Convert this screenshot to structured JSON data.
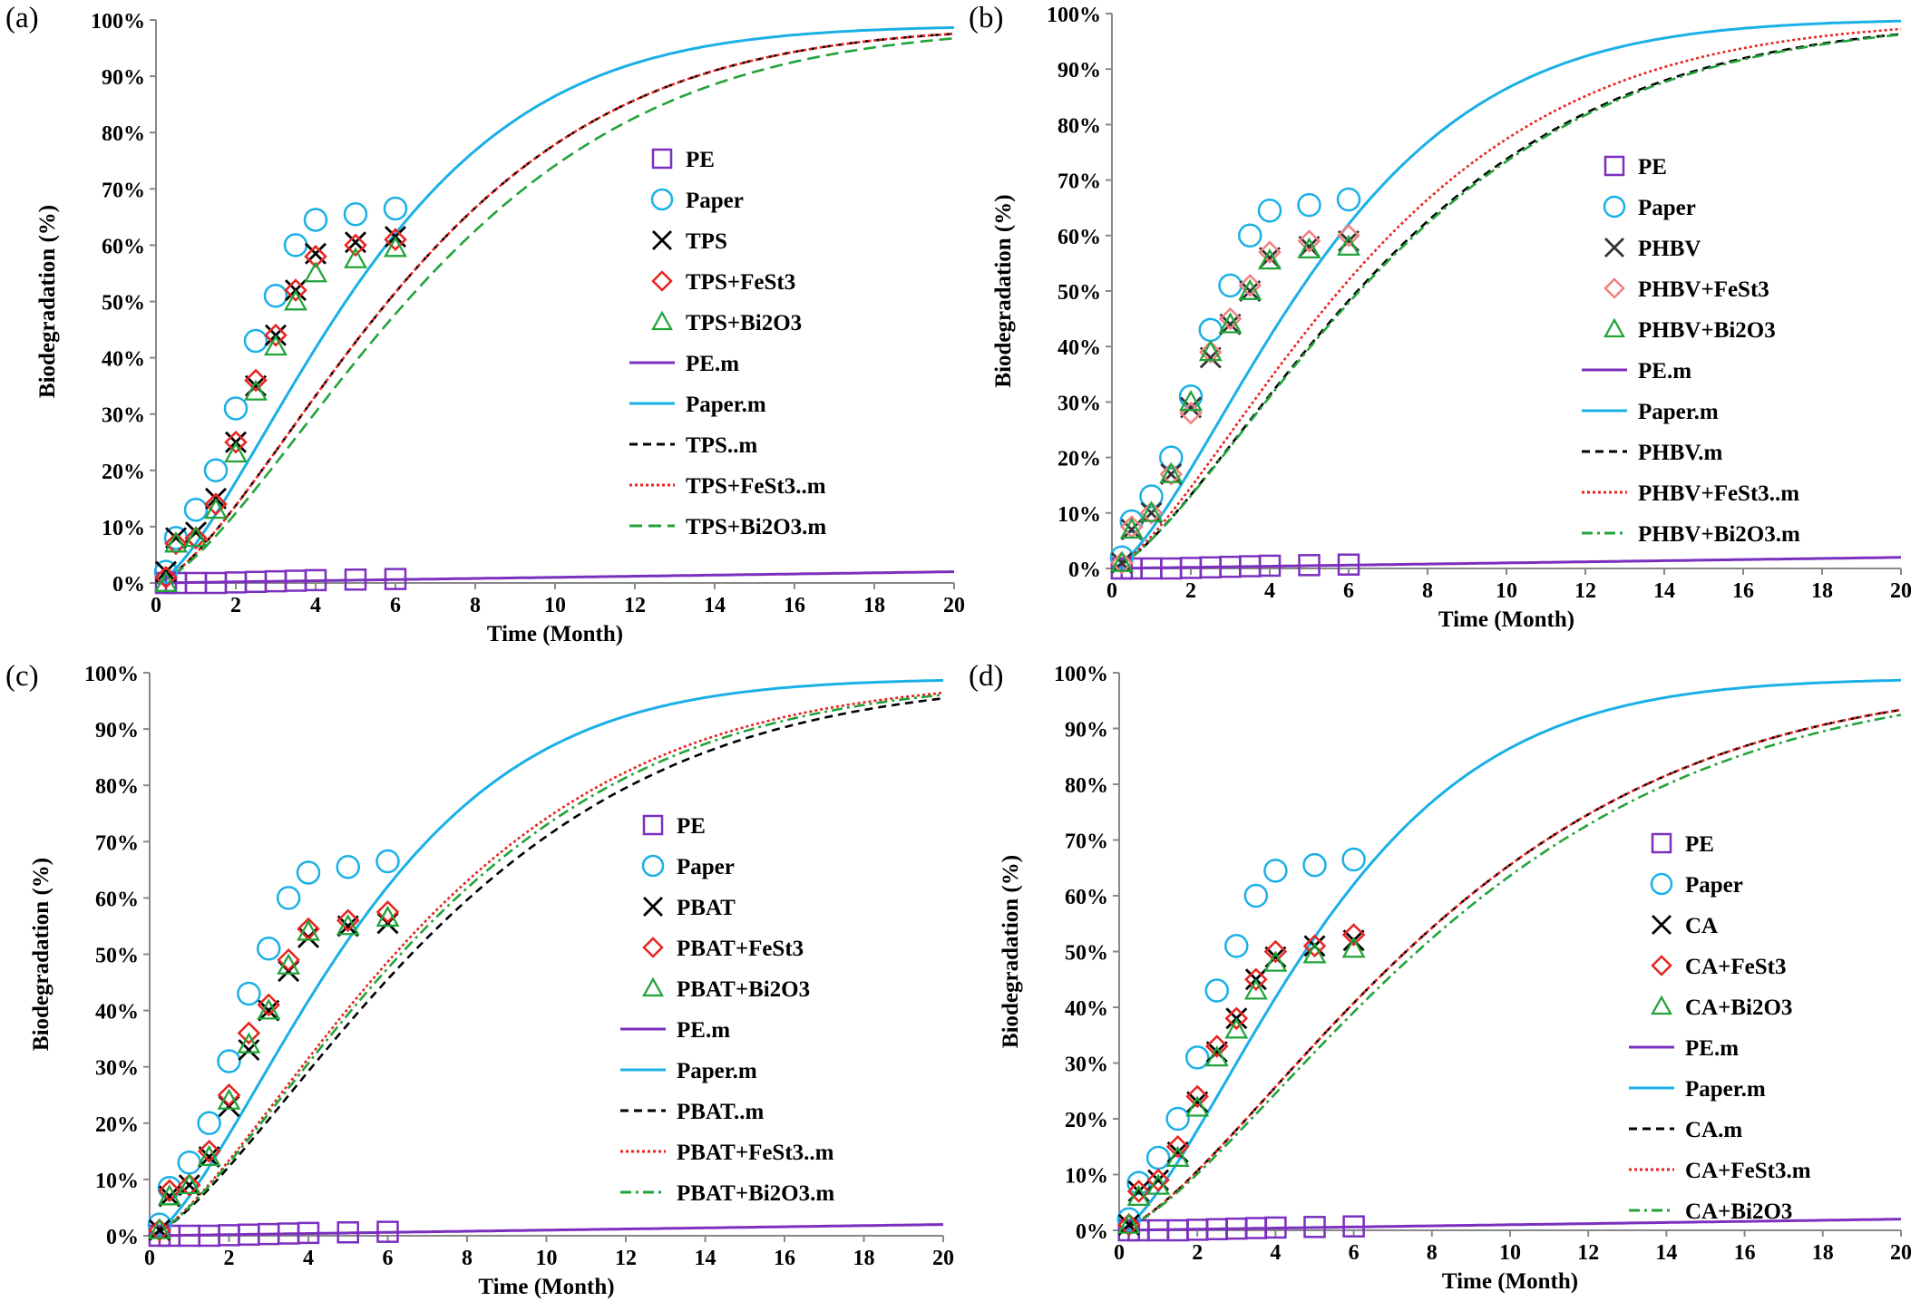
{
  "chart_data": [
    {
      "panel": "(a)",
      "type": "scatter",
      "xlabel": "Time (Month)",
      "ylabel": "Biodegradation (%)",
      "xlim": [
        0,
        20
      ],
      "ylim": [
        0,
        100
      ],
      "xticks": [
        "0",
        "2",
        "4",
        "6",
        "8",
        "10",
        "12",
        "14",
        "16",
        "18",
        "20"
      ],
      "yticks": [
        "0%",
        "10%",
        "20%",
        "30%",
        "40%",
        "50%",
        "60%",
        "70%",
        "80%",
        "90%",
        "100%"
      ],
      "legend_position": "center-right",
      "series": [
        {
          "name": "PE",
          "kind": "points",
          "marker": "square",
          "color": "#7b2fbe",
          "x": [
            0.25,
            0.5,
            1,
            1.5,
            2,
            2.5,
            3,
            3.5,
            4,
            5,
            6
          ],
          "y": [
            0,
            0,
            0,
            0,
            0.1,
            0.2,
            0.3,
            0.4,
            0.5,
            0.6,
            0.7
          ]
        },
        {
          "name": "Paper",
          "kind": "points",
          "marker": "circle",
          "color": "#1ab0e6",
          "x": [
            0.25,
            0.5,
            1,
            1.5,
            2,
            2.5,
            3,
            3.5,
            4,
            5,
            6
          ],
          "y": [
            2,
            8,
            13,
            20,
            31,
            43,
            51,
            60,
            64.5,
            65.5,
            66.5
          ]
        },
        {
          "name": "TPS",
          "kind": "points",
          "marker": "x",
          "color": "#000000",
          "x": [
            0.25,
            0.5,
            1,
            1.5,
            2,
            2.5,
            3,
            3.5,
            4,
            5,
            6
          ],
          "y": [
            2,
            8,
            9,
            15,
            25,
            35,
            44,
            52,
            58.5,
            60.5,
            61.5
          ]
        },
        {
          "name": "TPS+FeSt3",
          "kind": "points",
          "marker": "diamond",
          "color": "#e8231f",
          "x": [
            0.25,
            0.5,
            1,
            1.5,
            2,
            2.5,
            3,
            3.5,
            4,
            5,
            6
          ],
          "y": [
            1,
            7,
            8,
            14,
            25,
            36,
            44,
            52,
            58,
            60,
            61
          ]
        },
        {
          "name": "TPS+Bi2O3",
          "kind": "points",
          "marker": "triangle",
          "color": "#22a33a",
          "x": [
            0.25,
            0.5,
            1,
            1.5,
            2,
            2.5,
            3,
            3.5,
            4,
            5,
            6
          ],
          "y": [
            0,
            7,
            8,
            13,
            23,
            34,
            42,
            50,
            55,
            57.5,
            59.5
          ]
        },
        {
          "name": "PE.m",
          "kind": "line",
          "dash": "solid",
          "color": "#7b2fbe",
          "rate": 0.0,
          "linear": 0.1
        },
        {
          "name": "Paper.m",
          "kind": "line",
          "dash": "solid",
          "color": "#1ab0e6",
          "Dmax": 99,
          "k": 0.165,
          "n": 1.45
        },
        {
          "name": "TPS..m",
          "kind": "line",
          "dash": "dashed",
          "color": "#000000",
          "Dmax": 99,
          "k": 0.135,
          "n": 1.45
        },
        {
          "name": "TPS+FeSt3..m",
          "kind": "line",
          "dash": "dotted",
          "color": "#e8231f",
          "Dmax": 99,
          "k": 0.135,
          "n": 1.45
        },
        {
          "name": "TPS+Bi2O3.m",
          "kind": "line",
          "dash": "longdash",
          "color": "#22a33a",
          "Dmax": 99,
          "k": 0.125,
          "n": 1.45
        }
      ]
    },
    {
      "panel": "(b)",
      "type": "scatter",
      "xlabel": "Time (Month)",
      "ylabel": "Biodegradation (%)",
      "xlim": [
        0,
        20
      ],
      "ylim": [
        0,
        100
      ],
      "xticks": [
        "0",
        "2",
        "4",
        "6",
        "8",
        "10",
        "12",
        "14",
        "16",
        "18",
        "20"
      ],
      "yticks": [
        "0%",
        "10%",
        "20%",
        "30%",
        "40%",
        "50%",
        "60%",
        "70%",
        "80%",
        "90%",
        "100%"
      ],
      "legend_position": "center-right",
      "series": [
        {
          "name": "PE",
          "kind": "points",
          "marker": "square",
          "color": "#7b2fbe",
          "x": [
            0.25,
            0.5,
            1,
            1.5,
            2,
            2.5,
            3,
            3.5,
            4,
            5,
            6
          ],
          "y": [
            0,
            0,
            0,
            0,
            0.1,
            0.2,
            0.3,
            0.4,
            0.5,
            0.6,
            0.7
          ]
        },
        {
          "name": "Paper",
          "kind": "points",
          "marker": "circle",
          "color": "#1ab0e6",
          "x": [
            0.25,
            0.5,
            1,
            1.5,
            2,
            2.5,
            3,
            3.5,
            4,
            5,
            6
          ],
          "y": [
            2,
            8.5,
            13,
            20,
            31,
            43,
            51,
            60,
            64.5,
            65.5,
            66.5
          ]
        },
        {
          "name": "PHBV",
          "kind": "points",
          "marker": "x",
          "color": "#333333",
          "x": [
            0.25,
            0.5,
            1,
            1.5,
            2,
            2.5,
            3,
            3.5,
            4,
            5,
            6
          ],
          "y": [
            1,
            7,
            10,
            17,
            29,
            38,
            44,
            50,
            56,
            58,
            59
          ]
        },
        {
          "name": "PHBV+FeSt3",
          "kind": "points",
          "marker": "diamond",
          "color": "#f08080",
          "x": [
            0.25,
            0.5,
            1,
            1.5,
            2,
            2.5,
            3,
            3.5,
            4,
            5,
            6
          ],
          "y": [
            1,
            7.5,
            10,
            17,
            28,
            39,
            45,
            51,
            57,
            59,
            60
          ]
        },
        {
          "name": "PHBV+Bi2O3",
          "kind": "points",
          "marker": "triangle",
          "color": "#22a33a",
          "x": [
            0.25,
            0.5,
            1,
            1.5,
            2,
            2.5,
            3,
            3.5,
            4,
            5,
            6
          ],
          "y": [
            1,
            7,
            10,
            17,
            30,
            39,
            44,
            50,
            55.5,
            57.5,
            58
          ]
        },
        {
          "name": "PE.m",
          "kind": "line",
          "dash": "solid",
          "color": "#7b2fbe",
          "linear": 0.1
        },
        {
          "name": "Paper.m",
          "kind": "line",
          "dash": "solid",
          "color": "#1ab0e6",
          "Dmax": 99,
          "k": 0.165,
          "n": 1.45
        },
        {
          "name": "PHBV.m",
          "kind": "line",
          "dash": "dashed",
          "color": "#000000",
          "Dmax": 99,
          "k": 0.125,
          "n": 1.4
        },
        {
          "name": "PHBV+FeSt3..m",
          "kind": "line",
          "dash": "dotted",
          "color": "#e8231f",
          "Dmax": 99,
          "k": 0.135,
          "n": 1.4
        },
        {
          "name": "PHBV+Bi2O3.m",
          "kind": "line",
          "dash": "dashdot",
          "color": "#22a33a",
          "Dmax": 99,
          "k": 0.124,
          "n": 1.4
        }
      ]
    },
    {
      "panel": "(c)",
      "type": "scatter",
      "xlabel": "Time (Month)",
      "ylabel": "Biodegradation (%)",
      "xlim": [
        0,
        20
      ],
      "ylim": [
        0,
        100
      ],
      "xticks": [
        "0",
        "2",
        "4",
        "6",
        "8",
        "10",
        "12",
        "14",
        "16",
        "18",
        "20"
      ],
      "yticks": [
        "0%",
        "10%",
        "20%",
        "30%",
        "40%",
        "50%",
        "60%",
        "70%",
        "80%",
        "90%",
        "100%"
      ],
      "legend_position": "center-right",
      "series": [
        {
          "name": "PE",
          "kind": "points",
          "marker": "square",
          "color": "#7b2fbe",
          "x": [
            0.25,
            0.5,
            1,
            1.5,
            2,
            2.5,
            3,
            3.5,
            4,
            5,
            6
          ],
          "y": [
            0,
            0,
            0,
            0,
            0.1,
            0.2,
            0.3,
            0.4,
            0.5,
            0.6,
            0.7
          ]
        },
        {
          "name": "Paper",
          "kind": "points",
          "marker": "circle",
          "color": "#1ab0e6",
          "x": [
            0.25,
            0.5,
            1,
            1.5,
            2,
            2.5,
            3,
            3.5,
            4,
            5,
            6
          ],
          "y": [
            2,
            8.5,
            13,
            20,
            31,
            43,
            51,
            60,
            64.5,
            65.5,
            66.5
          ]
        },
        {
          "name": "PBAT",
          "kind": "points",
          "marker": "x",
          "color": "#000000",
          "x": [
            0.25,
            0.5,
            1,
            1.5,
            2,
            2.5,
            3,
            3.5,
            4,
            5,
            6
          ],
          "y": [
            1,
            7,
            9,
            14,
            23,
            33,
            40,
            47,
            53,
            55,
            55.5
          ]
        },
        {
          "name": "PBAT+FeSt3",
          "kind": "points",
          "marker": "diamond",
          "color": "#e8231f",
          "x": [
            0.25,
            0.5,
            1,
            1.5,
            2,
            2.5,
            3,
            3.5,
            4,
            5,
            6
          ],
          "y": [
            1,
            8,
            9,
            15,
            25,
            36,
            41,
            49,
            54.5,
            56,
            57.5
          ]
        },
        {
          "name": "PBAT+Bi2O3",
          "kind": "points",
          "marker": "triangle",
          "color": "#22a33a",
          "x": [
            0.25,
            0.5,
            1,
            1.5,
            2,
            2.5,
            3,
            3.5,
            4,
            5,
            6
          ],
          "y": [
            1,
            7,
            9,
            14,
            24,
            34,
            40,
            48,
            54,
            55,
            56.5
          ]
        },
        {
          "name": "PE.m",
          "kind": "line",
          "dash": "solid",
          "color": "#7b2fbe",
          "linear": 0.1
        },
        {
          "name": "Paper.m",
          "kind": "line",
          "dash": "solid",
          "color": "#1ab0e6",
          "Dmax": 99,
          "k": 0.165,
          "n": 1.45
        },
        {
          "name": "PBAT..m",
          "kind": "line",
          "dash": "dashed",
          "color": "#000000",
          "Dmax": 99,
          "k": 0.118,
          "n": 1.4
        },
        {
          "name": "PBAT+FeSt3..m",
          "kind": "line",
          "dash": "dotted",
          "color": "#e8231f",
          "Dmax": 99,
          "k": 0.126,
          "n": 1.4
        },
        {
          "name": "PBAT+Bi2O3.m",
          "kind": "line",
          "dash": "dashdot",
          "color": "#22a33a",
          "Dmax": 99,
          "k": 0.123,
          "n": 1.4
        }
      ]
    },
    {
      "panel": "(d)",
      "type": "scatter",
      "xlabel": "Time (Month)",
      "ylabel": "Biodegradation (%)",
      "xlim": [
        0,
        20
      ],
      "ylim": [
        0,
        100
      ],
      "xticks": [
        "0",
        "2",
        "4",
        "6",
        "8",
        "10",
        "12",
        "14",
        "16",
        "18",
        "20"
      ],
      "yticks": [
        "0%",
        "10%",
        "20%",
        "30%",
        "40%",
        "50%",
        "60%",
        "70%",
        "80%",
        "90%",
        "100%"
      ],
      "legend_position": "center-right",
      "series": [
        {
          "name": "PE",
          "kind": "points",
          "marker": "square",
          "color": "#7b2fbe",
          "x": [
            0.25,
            0.5,
            1,
            1.5,
            2,
            2.5,
            3,
            3.5,
            4,
            5,
            6
          ],
          "y": [
            0,
            0,
            0,
            0,
            0.1,
            0.2,
            0.3,
            0.4,
            0.5,
            0.6,
            0.7
          ]
        },
        {
          "name": "Paper",
          "kind": "points",
          "marker": "circle",
          "color": "#1ab0e6",
          "x": [
            0.25,
            0.5,
            1,
            1.5,
            2,
            2.5,
            3,
            3.5,
            4,
            5,
            6
          ],
          "y": [
            2,
            8.5,
            13,
            20,
            31,
            43,
            51,
            60,
            64.5,
            65.5,
            66.5
          ]
        },
        {
          "name": "CA",
          "kind": "points",
          "marker": "x",
          "color": "#000000",
          "x": [
            0.25,
            0.5,
            1,
            1.5,
            2,
            2.5,
            3,
            3.5,
            4,
            5,
            6
          ],
          "y": [
            1,
            7,
            9,
            14,
            23,
            32,
            38,
            45,
            49,
            51,
            52
          ]
        },
        {
          "name": "CA+FeSt3",
          "kind": "points",
          "marker": "diamond",
          "color": "#e8231f",
          "x": [
            0.25,
            0.5,
            1,
            1.5,
            2,
            2.5,
            3,
            3.5,
            4,
            5,
            6
          ],
          "y": [
            1,
            7,
            9,
            15,
            24,
            33,
            38,
            45,
            50,
            51,
            53
          ]
        },
        {
          "name": "CA+Bi2O3",
          "kind": "points",
          "marker": "triangle",
          "color": "#22a33a",
          "x": [
            0.25,
            0.5,
            1,
            1.5,
            2,
            2.5,
            3,
            3.5,
            4,
            5,
            6
          ],
          "y": [
            1,
            6,
            8,
            13,
            22,
            31,
            36,
            43,
            48,
            49.5,
            50.5
          ]
        },
        {
          "name": "PE.m",
          "kind": "line",
          "dash": "solid",
          "color": "#7b2fbe",
          "linear": 0.1
        },
        {
          "name": "Paper.m",
          "kind": "line",
          "dash": "solid",
          "color": "#1ab0e6",
          "Dmax": 99,
          "k": 0.165,
          "n": 1.45
        },
        {
          "name": "CA.m",
          "kind": "line",
          "dash": "dashed",
          "color": "#000000",
          "Dmax": 99,
          "k": 0.106,
          "n": 1.4
        },
        {
          "name": "CA+FeSt3.m",
          "kind": "line",
          "dash": "dotted",
          "color": "#e8231f",
          "Dmax": 99,
          "k": 0.106,
          "n": 1.4
        },
        {
          "name": "CA+Bi2O3",
          "kind": "line",
          "dash": "dashdot",
          "color": "#22a33a",
          "Dmax": 99,
          "k": 0.102,
          "n": 1.4
        }
      ]
    }
  ]
}
